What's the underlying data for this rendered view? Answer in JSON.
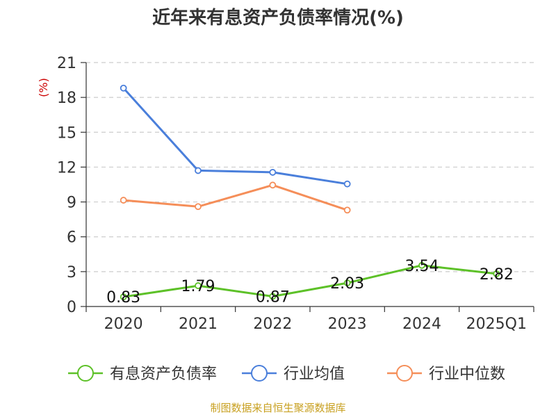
{
  "chart_data": {
    "type": "line",
    "title": "近年来有息资产负债率情况(%)",
    "ylabel": "(%)",
    "xlabel": "",
    "categories": [
      "2020",
      "2021",
      "2022",
      "2023",
      "2024",
      "2025Q1"
    ],
    "ylim": [
      0,
      21
    ],
    "yticks": [
      "0",
      "3",
      "6",
      "9",
      "12",
      "15",
      "18",
      "21"
    ],
    "grid": "horizontal-dashed",
    "legend_position": "bottom",
    "series": [
      {
        "name": "有息资产负债率",
        "color": "#5dc128",
        "values": [
          0.83,
          1.79,
          0.87,
          2.03,
          3.54,
          2.82
        ],
        "labels": [
          "0.83",
          "1.79",
          "0.87",
          "2.03",
          "3.54",
          "2.82"
        ]
      },
      {
        "name": "行业均值",
        "color": "#4a7fdb",
        "values": [
          18.8,
          11.7,
          11.55,
          10.55,
          null,
          null
        ]
      },
      {
        "name": "行业中位数",
        "color": "#f58e59",
        "values": [
          9.15,
          8.6,
          10.45,
          8.3,
          null,
          null
        ]
      }
    ]
  },
  "source": {
    "text": "制图数据来自恒生聚源数据库",
    "color": "#c8a020"
  },
  "colors": {
    "axis": "#333333",
    "grid": "#cccccc",
    "ylabel": "#cc0000"
  }
}
